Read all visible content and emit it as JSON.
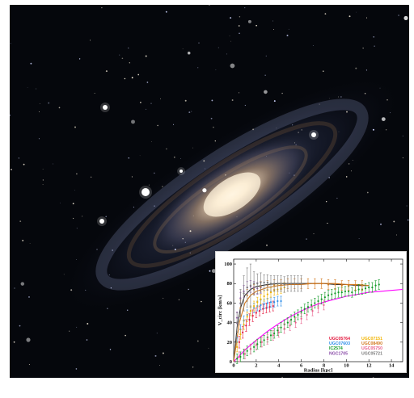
{
  "background": {
    "type": "photo",
    "subject": "spiral-galaxy",
    "colors": {
      "space": "#05070c",
      "core": "#fff3dc",
      "dust": "#5a4a3c",
      "arm": "#7c8ab4"
    }
  },
  "chart_data": {
    "type": "scatter",
    "title": "",
    "xlabel": "Radius [kpc]",
    "ylabel": "V_circ [km/s]",
    "xlim": [
      0,
      15
    ],
    "ylim": [
      0,
      105
    ],
    "xticks": [
      "0",
      "2",
      "4",
      "6",
      "8",
      "10",
      "12",
      "14"
    ],
    "yticks": [
      "0",
      "20",
      "40",
      "60",
      "80",
      "100"
    ],
    "grid": false,
    "legend_position": "bottom-right",
    "series": [
      {
        "name": "UGC05764",
        "color": "#e3163c",
        "x": [
          0.5,
          0.8,
          1.1,
          1.4,
          1.7,
          2.0,
          2.3,
          2.6,
          2.9,
          3.2,
          3.5
        ],
        "y": [
          20,
          30,
          37,
          43,
          47,
          50,
          52,
          54,
          55,
          56,
          57
        ],
        "err": [
          6,
          6,
          6,
          6,
          6,
          5,
          5,
          5,
          5,
          5,
          5
        ]
      },
      {
        "name": "UGC07603",
        "color": "#2e8ee8",
        "x": [
          0.3,
          0.6,
          0.9,
          1.2,
          1.5,
          1.8,
          2.1,
          2.4,
          2.7,
          3.0,
          3.3,
          3.6,
          3.9,
          4.2
        ],
        "y": [
          20,
          33,
          42,
          48,
          52,
          55,
          57,
          58,
          59,
          60,
          61,
          61,
          62,
          62
        ],
        "err": [
          5,
          5,
          5,
          5,
          5,
          5,
          5,
          5,
          5,
          5,
          5,
          5,
          5,
          5
        ]
      },
      {
        "name": "IC2574",
        "color": "#139a27",
        "x": [
          0.3,
          0.6,
          0.9,
          1.2,
          1.5,
          1.8,
          2.1,
          2.4,
          2.7,
          3.0,
          3.3,
          3.6,
          3.9,
          4.2,
          4.5,
          4.8,
          5.1,
          5.4,
          5.7,
          6.0,
          6.3,
          6.6,
          6.9,
          7.2,
          7.5,
          7.8,
          8.1,
          8.4,
          8.7,
          9.0,
          9.3,
          9.6,
          9.9,
          10.2,
          10.5,
          10.8,
          11.1,
          11.4,
          11.7,
          12.0,
          12.3,
          12.6,
          12.9
        ],
        "y": [
          3,
          5,
          8,
          11,
          13,
          15,
          18,
          20,
          22,
          25,
          27,
          29,
          32,
          35,
          38,
          40,
          43,
          46,
          48,
          51,
          54,
          56,
          58,
          60,
          62,
          64,
          66,
          68,
          69,
          70,
          71,
          71,
          72,
          72,
          71,
          73,
          74,
          74,
          75,
          76,
          76,
          78,
          79
        ],
        "err": [
          5,
          5,
          5,
          5,
          5,
          5,
          5,
          5,
          5,
          5,
          5,
          5,
          5,
          5,
          5,
          5,
          5,
          5,
          5,
          5,
          5,
          5,
          5,
          5,
          5,
          5,
          5,
          5,
          5,
          5,
          5,
          5,
          5,
          5,
          5,
          5,
          5,
          5,
          5,
          5,
          5,
          5,
          5
        ]
      },
      {
        "name": "NGC1705",
        "color": "#8a4ca8",
        "x": [
          0.3,
          0.6,
          0.9,
          1.2,
          1.5,
          1.8,
          2.1,
          2.4
        ],
        "y": [
          45,
          65,
          72,
          76,
          77,
          76,
          75,
          76
        ],
        "err": [
          6,
          6,
          6,
          6,
          6,
          6,
          6,
          6
        ]
      },
      {
        "name": "UGC07151",
        "color": "#f2b400",
        "x": [
          0.3,
          0.6,
          0.9,
          1.2,
          1.5,
          1.8,
          2.1,
          2.4,
          2.7,
          3.0,
          3.3,
          3.6,
          3.9,
          4.2,
          4.5
        ],
        "y": [
          15,
          28,
          38,
          46,
          52,
          57,
          61,
          64,
          67,
          69,
          71,
          73,
          74,
          75,
          76
        ],
        "err": [
          5,
          5,
          5,
          5,
          5,
          5,
          5,
          5,
          5,
          5,
          5,
          5,
          5,
          5,
          5
        ]
      },
      {
        "name": "UGC08490",
        "color": "#d2781e",
        "x": [
          0.6,
          1.2,
          1.8,
          2.4,
          3.0,
          3.6,
          4.2,
          4.8,
          5.4,
          6.0,
          6.6,
          7.2,
          7.8,
          8.4,
          9.0,
          9.6,
          10.2,
          10.8,
          11.4
        ],
        "y": [
          55,
          68,
          74,
          77,
          78,
          79,
          79,
          80,
          80,
          80,
          80,
          80,
          80,
          79,
          79,
          78,
          78,
          78,
          78
        ],
        "err": [
          8,
          6,
          5,
          5,
          5,
          5,
          5,
          5,
          5,
          5,
          5,
          5,
          5,
          5,
          5,
          5,
          5,
          5,
          5
        ]
      },
      {
        "name": "UGC05750",
        "color": "#e8608c",
        "x": [
          0.5,
          1.0,
          1.5,
          2.0,
          2.5,
          3.0,
          3.5,
          4.0,
          4.5,
          5.0,
          5.5,
          6.0,
          6.5,
          7.0,
          7.5,
          8.0
        ],
        "y": [
          5,
          8,
          13,
          17,
          20,
          23,
          27,
          30,
          34,
          37,
          40,
          44,
          48,
          52,
          55,
          58
        ],
        "err": [
          5,
          5,
          5,
          5,
          5,
          5,
          5,
          5,
          5,
          5,
          5,
          5,
          5,
          5,
          5,
          5
        ]
      },
      {
        "name": "UGC05721",
        "color": "#7a7a7a",
        "x": [
          0.3,
          0.6,
          0.9,
          1.2,
          1.5,
          1.8,
          2.1,
          2.4,
          2.7,
          3.0,
          3.3,
          3.6,
          3.9,
          4.2,
          4.5,
          4.8,
          5.1,
          5.4,
          5.7,
          6.0
        ],
        "y": [
          40,
          60,
          70,
          76,
          78,
          80,
          80,
          81,
          81,
          81,
          80,
          80,
          80,
          80,
          79,
          80,
          80,
          80,
          80,
          80
        ],
        "err": [
          10,
          14,
          18,
          20,
          22,
          12,
          10,
          10,
          8,
          8,
          8,
          8,
          8,
          8,
          8,
          8,
          8,
          8,
          8,
          8
        ]
      }
    ],
    "fit_curves": [
      {
        "color": "#ff00ff",
        "x": [
          0,
          0.5,
          1,
          1.5,
          2,
          3,
          4,
          5,
          6,
          7,
          8,
          9,
          10,
          11,
          12,
          13,
          14,
          15
        ],
        "y": [
          0,
          6,
          12,
          17,
          22,
          31,
          39,
          46,
          52,
          57,
          61,
          64,
          67,
          69,
          71,
          72,
          73,
          74
        ]
      },
      {
        "color": "#333333",
        "x": [
          0,
          0.3,
          0.6,
          1,
          1.5,
          2,
          3,
          4,
          5,
          6,
          7,
          8,
          9,
          10,
          11,
          12
        ],
        "y": [
          0,
          35,
          55,
          68,
          74,
          77,
          79,
          80,
          80,
          80,
          80,
          80,
          79,
          79,
          78,
          78
        ]
      },
      {
        "color": "#d2781e",
        "x": [
          0,
          0.5,
          1,
          1.5,
          2,
          3,
          4,
          5,
          6,
          7,
          8,
          9,
          10,
          11,
          12
        ],
        "y": [
          0,
          40,
          60,
          68,
          72,
          76,
          78,
          79,
          79,
          80,
          80,
          80,
          79,
          79,
          78
        ]
      }
    ],
    "legend": [
      {
        "label": "UGC05764",
        "color": "#e3163c"
      },
      {
        "label": "UGC07151",
        "color": "#f2b400"
      },
      {
        "label": "UGC07603",
        "color": "#2e8ee8"
      },
      {
        "label": "UGC08490",
        "color": "#d2781e"
      },
      {
        "label": "IC2574",
        "color": "#139a27"
      },
      {
        "label": "UGC05750",
        "color": "#e8608c"
      },
      {
        "label": "NGC1705",
        "color": "#8a4ca8"
      },
      {
        "label": "UGC05721",
        "color": "#7a7a7a"
      }
    ]
  }
}
